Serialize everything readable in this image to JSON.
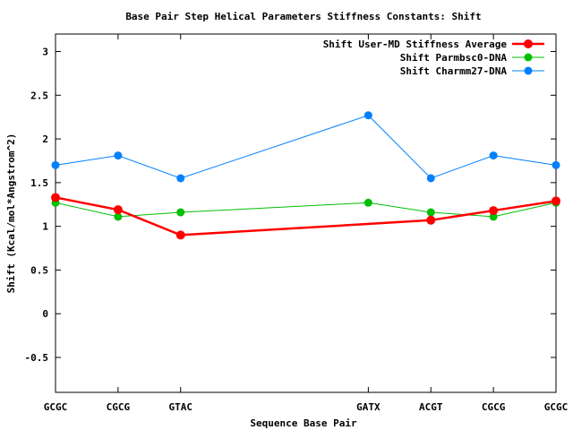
{
  "chart_data": {
    "type": "line",
    "title": "Base Pair Step Helical Parameters Stiffness Constants: Shift",
    "xlabel": "Sequence Base Pair",
    "ylabel": "Shift (Kcal/mol*Angstrom^2)",
    "ylim": [
      -0.9,
      3.2
    ],
    "yticks": [
      -0.5,
      0,
      0.5,
      1,
      1.5,
      2,
      2.5,
      3
    ],
    "ytick_labels": [
      "-0.5",
      "0",
      "0.5",
      "1",
      "1.5",
      "2",
      "2.5",
      "3"
    ],
    "xlim": [
      0,
      8
    ],
    "categories": [
      "GCGC",
      "CGCG",
      "GTAC",
      "GATX",
      "ACGT",
      "CGCG",
      "GCGC"
    ],
    "x": [
      0,
      1,
      2,
      5,
      6,
      7,
      8
    ],
    "grid": false,
    "legend_position": "top-right",
    "series": [
      {
        "name": "Shift User-MD Stiffness Average",
        "color": "#ff0000",
        "values": [
          1.33,
          1.19,
          0.9,
          null,
          1.07,
          1.18,
          1.29
        ]
      },
      {
        "name": "Shift Parmbsc0-DNA",
        "color": "#00c000",
        "values": [
          1.27,
          1.11,
          1.16,
          1.27,
          1.16,
          1.11,
          1.27
        ]
      },
      {
        "name": "Shift Charmm27-DNA",
        "color": "#0080ff",
        "values": [
          1.7,
          1.81,
          1.55,
          2.27,
          1.55,
          1.81,
          1.7
        ]
      }
    ]
  }
}
